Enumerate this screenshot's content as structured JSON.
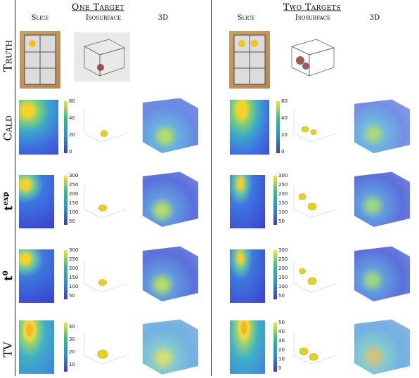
{
  "groups": {
    "one": "One Target",
    "two": "Two Targets"
  },
  "columns": {
    "slice": "Slice",
    "iso": "Isosurface",
    "threed": "3D"
  },
  "rows": [
    {
      "label": "Truth"
    },
    {
      "label": "Cald",
      "ticks": [
        "60",
        "40",
        "20",
        "0"
      ]
    },
    {
      "label": "t",
      "sup": "exp",
      "ticks": [
        "300",
        "250",
        "200",
        "150",
        "100",
        "50"
      ]
    },
    {
      "label": "t",
      "sup": "0",
      "ticks": [
        "300",
        "250",
        "200",
        "150",
        "100",
        "50"
      ]
    },
    {
      "label": "TV",
      "ticks_one": [
        "40",
        "30",
        "20",
        "10"
      ],
      "ticks_two": [
        "50",
        "40",
        "30",
        "20",
        "10",
        "0"
      ]
    }
  ],
  "colors": {
    "blob": "#e6d21e",
    "vol": "#5a7be0",
    "slice_bg": "#3f52d6",
    "hot": "#f5c51b"
  }
}
